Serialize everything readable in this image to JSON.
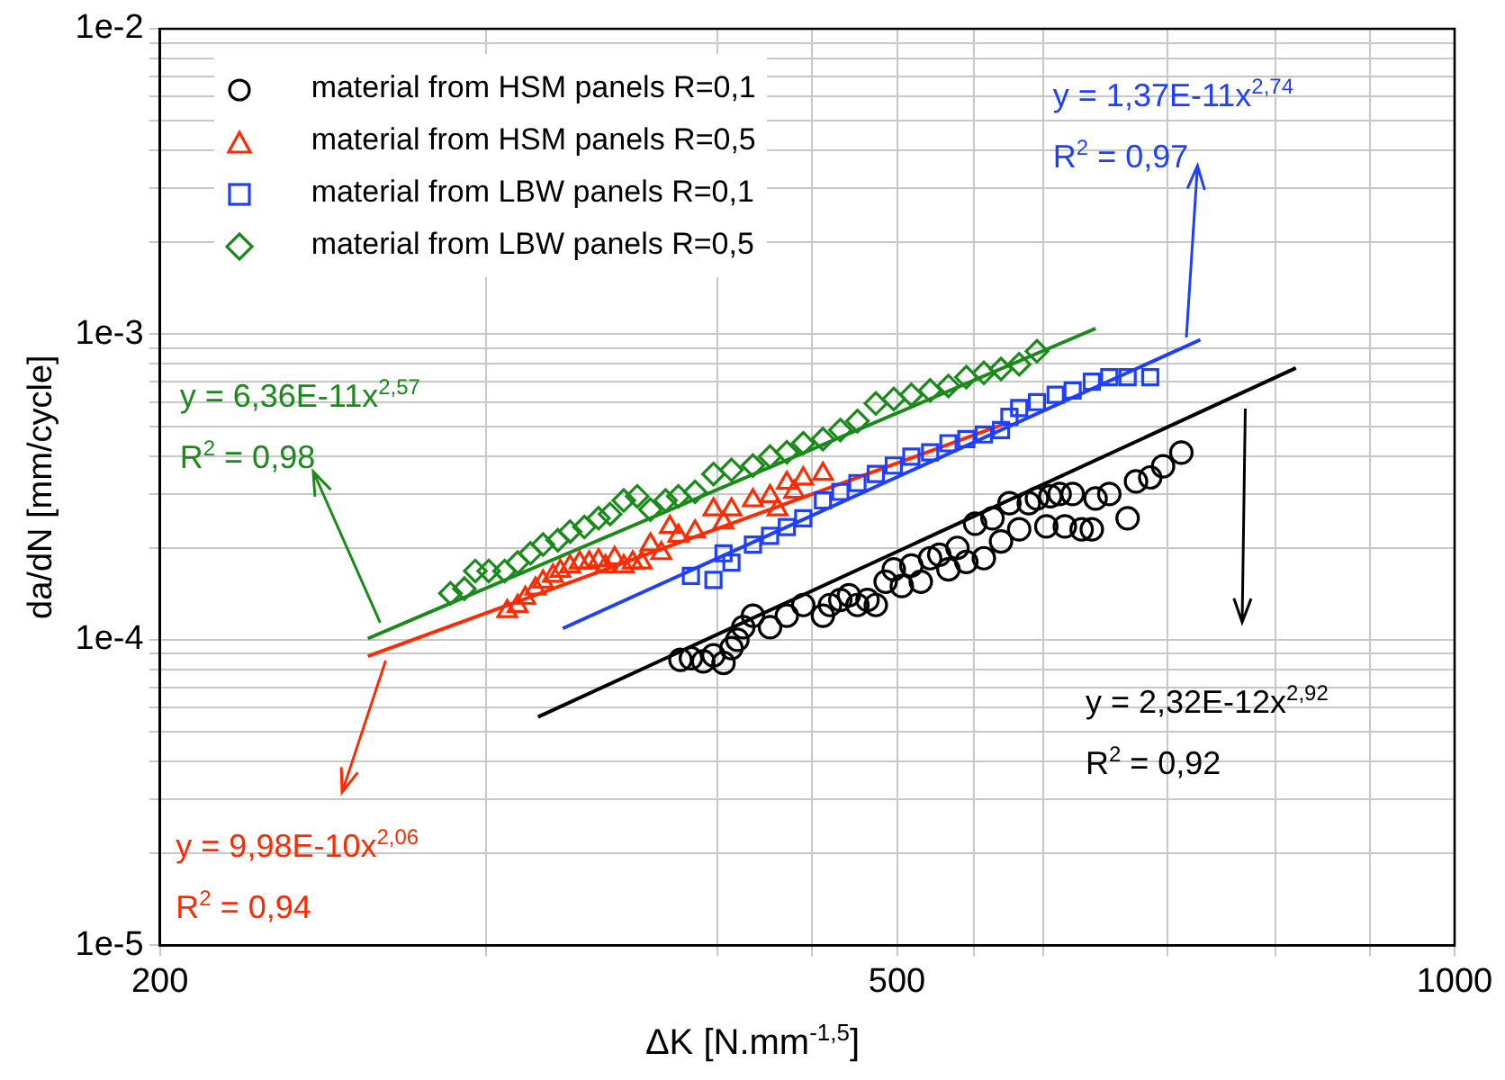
{
  "chart_data": {
    "type": "scatter",
    "xlabel": "ΔK [N.mm$^{-1,5}$]",
    "ylabel": "da/dN [mm/cycle]",
    "log": "xy",
    "grid": true,
    "legend": "top left",
    "xlim": [
      200,
      1000
    ],
    "xticks": [
      200,
      {
        "value": 300,
        "label": null
      },
      {
        "value": 400,
        "label": null
      },
      {
        "value": 450,
        "label": null
      },
      500,
      {
        "value": 550,
        "label": null
      },
      {
        "value": 600,
        "label": null
      },
      {
        "value": 700,
        "label": null
      },
      {
        "value": 800,
        "label": null
      },
      {
        "value": 900,
        "label": null
      },
      1000
    ],
    "ylim": [
      1e-05,
      0.01
    ],
    "yticks": [
      {
        "value": 1e-05,
        "label": "1e-5"
      },
      {
        "value": 2e-05,
        "label": null
      },
      {
        "value": 3e-05,
        "label": null
      },
      {
        "value": 4e-05,
        "label": null
      },
      {
        "value": 5e-05,
        "label": null
      },
      {
        "value": 6e-05,
        "label": null
      },
      {
        "value": 7e-05,
        "label": null
      },
      {
        "value": 8e-05,
        "label": null
      },
      {
        "value": 9e-05,
        "label": null
      },
      {
        "value": 0.0001,
        "label": "1e-4"
      },
      {
        "value": 0.0002,
        "label": null
      },
      {
        "value": 0.0003,
        "label": null
      },
      {
        "value": 0.0004,
        "label": null
      },
      {
        "value": 0.0005,
        "label": null
      },
      {
        "value": 0.0006,
        "label": null
      },
      {
        "value": 0.0007,
        "label": null
      },
      {
        "value": 0.0008,
        "label": null
      },
      {
        "value": 0.0009,
        "label": null
      },
      {
        "value": 0.001,
        "label": "1e-3"
      },
      {
        "value": 0.002,
        "label": null
      },
      {
        "value": 0.003,
        "label": null
      },
      {
        "value": 0.004,
        "label": null
      },
      {
        "value": 0.005,
        "label": null
      },
      {
        "value": 0.006,
        "label": null
      },
      {
        "value": 0.007,
        "label": null
      },
      {
        "value": 0.008,
        "label": null
      },
      {
        "value": 0.009,
        "label": null
      },
      {
        "value": 0.01,
        "label": "1e-2"
      }
    ],
    "series": [
      {
        "name": "material from HSM panels R=0,1",
        "marker": "circle",
        "color": "#000000",
        "x": [
          382,
          387,
          393,
          398,
          403,
          407,
          410,
          413,
          418,
          427,
          436,
          445,
          456,
          460,
          466,
          471,
          476,
          482,
          487,
          493,
          498,
          503,
          509,
          515,
          521,
          527,
          533,
          539,
          545,
          551,
          557,
          563,
          569,
          575,
          582,
          589,
          595,
          602,
          605,
          612,
          616,
          622,
          629,
          637,
          640,
          651,
          666,
          673,
          685,
          696,
          712
        ],
        "values": [
          8.6e-05,
          8.7e-05,
          8.5e-05,
          8.9e-05,
          8.4e-05,
          9.4e-05,
          0.0001,
          0.00011,
          0.00012,
          0.00011,
          0.00012,
          0.00013,
          0.00012,
          0.00013,
          0.000135,
          0.00014,
          0.00013,
          0.000135,
          0.00013,
          0.000155,
          0.00017,
          0.00015,
          0.000175,
          0.000155,
          0.000185,
          0.00019,
          0.00017,
          0.0002,
          0.00018,
          0.00024,
          0.000185,
          0.00025,
          0.00021,
          0.00028,
          0.00023,
          0.00028,
          0.00029,
          0.000235,
          0.000295,
          0.0003,
          0.000235,
          0.0003,
          0.00023,
          0.00023,
          0.00029,
          0.0003,
          0.00025,
          0.00033,
          0.00034,
          0.00037,
          0.00041
        ]
      },
      {
        "name": "material from HSM panels R=0,5",
        "marker": "triangle",
        "color": "#ff2a00",
        "x": [
          308,
          312,
          315,
          319,
          322,
          326,
          329,
          333,
          337,
          341,
          345,
          348,
          352,
          356,
          360,
          364,
          368,
          373,
          377,
          381,
          389,
          398,
          403,
          407,
          418,
          427,
          431,
          436,
          440,
          445,
          456
        ],
        "values": [
          0.000124,
          0.000129,
          0.000137,
          0.000147,
          0.000155,
          0.000162,
          0.000168,
          0.000174,
          0.000179,
          0.000179,
          0.000182,
          0.000174,
          0.000185,
          0.000174,
          0.000179,
          0.000179,
          0.000205,
          0.000192,
          0.000234,
          0.000219,
          0.000226,
          0.000267,
          0.000242,
          0.000267,
          0.000286,
          0.000295,
          0.000267,
          0.000326,
          0.000305,
          0.000337,
          0.000349
        ]
      },
      {
        "name": "material from LBW panels R=0,1",
        "marker": "square",
        "color": "#1f3fff",
        "x": [
          387,
          398,
          403,
          407,
          418,
          427,
          436,
          445,
          456,
          466,
          476,
          487,
          498,
          509,
          521,
          533,
          545,
          557,
          569,
          575,
          582,
          595,
          609,
          622,
          637,
          651,
          666,
          685
        ],
        "values": [
          0.000162,
          0.000157,
          0.000192,
          0.000179,
          0.000205,
          0.000219,
          0.000234,
          0.00025,
          0.000286,
          0.000305,
          0.000326,
          0.000349,
          0.000372,
          0.000398,
          0.000411,
          0.00044,
          0.000454,
          0.00047,
          0.000486,
          0.000537,
          0.000574,
          0.0006,
          0.000634,
          0.000655,
          0.0007,
          0.000724,
          0.000724,
          0.000724
        ]
      },
      {
        "name": "material from LBW panels R=0,5",
        "marker": "diamond",
        "color": "#1a8a1a",
        "x": [
          287,
          292,
          296,
          301,
          307,
          312,
          317,
          322,
          328,
          333,
          339,
          345,
          350,
          356,
          362,
          368,
          375,
          381,
          389,
          398,
          407,
          418,
          427,
          436,
          445,
          456,
          466,
          476,
          487,
          498,
          509,
          521,
          533,
          545,
          557,
          569,
          582,
          595
        ],
        "values": [
          0.000142,
          0.000147,
          0.000168,
          0.000168,
          0.000168,
          0.000179,
          0.000192,
          0.000205,
          0.000212,
          0.000226,
          0.000234,
          0.00025,
          0.000258,
          0.000286,
          0.000295,
          0.000267,
          0.000286,
          0.000295,
          0.000305,
          0.000349,
          0.00036,
          0.000372,
          0.000398,
          0.000411,
          0.00044,
          0.000454,
          0.000486,
          0.00052,
          0.000594,
          0.000614,
          0.000634,
          0.000655,
          0.000677,
          0.000724,
          0.000748,
          0.00077,
          0.000798,
          0.00088
        ]
      },
      {
        "type": "line",
        "marker": "none",
        "color": "#000000",
        "x": [
          320,
          821
        ],
        "values": [
          5.59e-05,
          0.000776
        ]
      },
      {
        "type": "line",
        "marker": "none",
        "color": "#ff2a00",
        "x": [
          259,
          569
        ],
        "values": [
          8.84e-05,
          0.000504
        ]
      },
      {
        "type": "line",
        "marker": "none",
        "color": "#1f3fff",
        "x": [
          330,
          729
        ],
        "values": [
          0.000109,
          0.00096
        ]
      },
      {
        "type": "line",
        "marker": "none",
        "color": "#1a8a1a",
        "x": [
          259,
          640
        ],
        "values": [
          0.000101,
          0.001045
        ]
      }
    ],
    "annotations": [
      "y = 2,32E-12x$^{2,92}$",
      "R$^{2}$ = 0,92",
      "y = 9,98E-10x$^{2,06}$",
      "R$^{2}$ = 0,94",
      "y = 1,37E-11x$^{2,74}$",
      {
        "text": "R$^{2}$ = 0,97",
        "x": 716,
        "y": 0.000976
      },
      "y = 6,36E-11x$^{2,57}$",
      {
        "text": "R$^{2}$ = 0,98",
        "x": 263,
        "y": 0.000113
      }
    ]
  }
}
